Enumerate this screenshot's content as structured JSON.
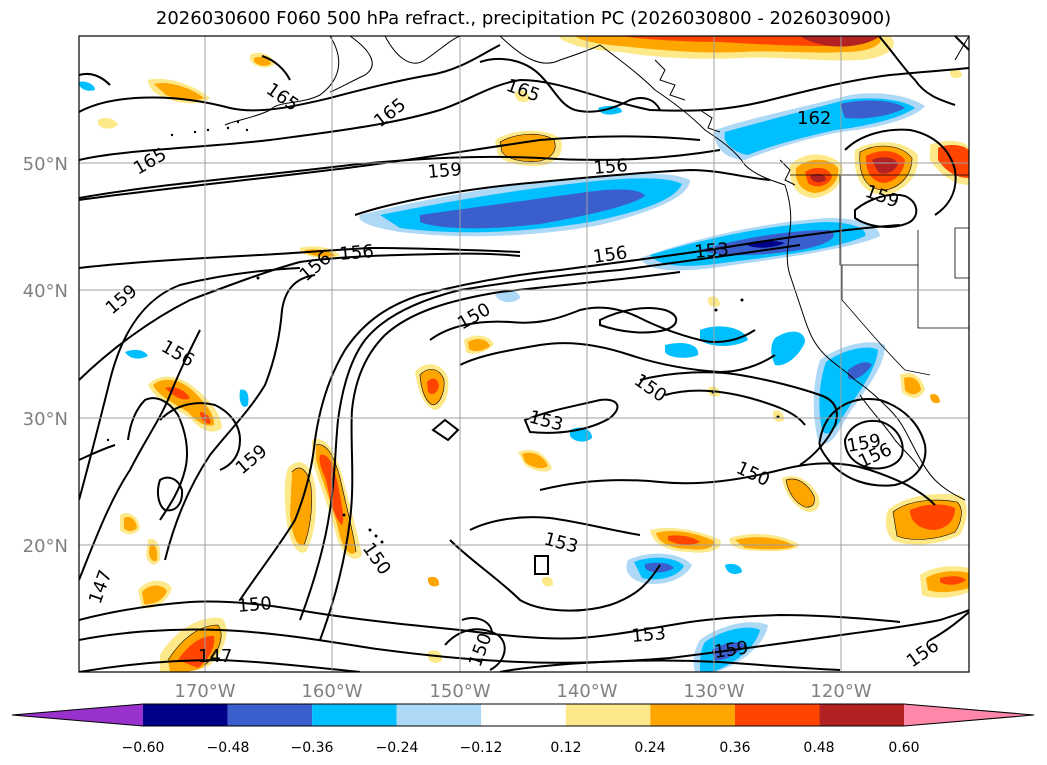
{
  "title": "2026030600 F060 500 hPa refract., precipitation PC (2026030800 - 2026030900)",
  "lat_labels": [
    "50°N",
    "40°N",
    "30°N",
    "20°N"
  ],
  "lon_labels": [
    "170°W",
    "160°W",
    "150°W",
    "140°W",
    "130°W",
    "120°W"
  ],
  "contour_labels": [
    "165",
    "165",
    "165",
    "165",
    "162",
    "159",
    "156",
    "159",
    "156",
    "156",
    "159",
    "156",
    "156",
    "153",
    "150",
    "150",
    "153",
    "159",
    "150",
    "153",
    "159",
    "156",
    "147",
    "150",
    "147",
    "150",
    "150",
    "153",
    "159",
    "156"
  ],
  "colorbar": {
    "tick_labels": [
      "−0.60",
      "−0.48",
      "−0.36",
      "−0.24",
      "−0.12",
      "0.12",
      "0.24",
      "0.36",
      "0.48",
      "0.60"
    ],
    "colors": [
      "#9932cc",
      "#00008b",
      "#3a5fcd",
      "#00bfff",
      "#add8f6",
      "#ffffff",
      "#fde98a",
      "#ffa500",
      "#ff4500",
      "#b22222",
      "#ff88aa"
    ]
  },
  "fill_colors": {
    "neg_light": "#add8f6",
    "neg_mid": "#00bfff",
    "neg_dark": "#3a5fcd",
    "neg_deep": "#00008b",
    "pos_light": "#fde98a",
    "pos_mid": "#ffa500",
    "pos_high": "#ff4500",
    "pos_max": "#b22222"
  }
}
